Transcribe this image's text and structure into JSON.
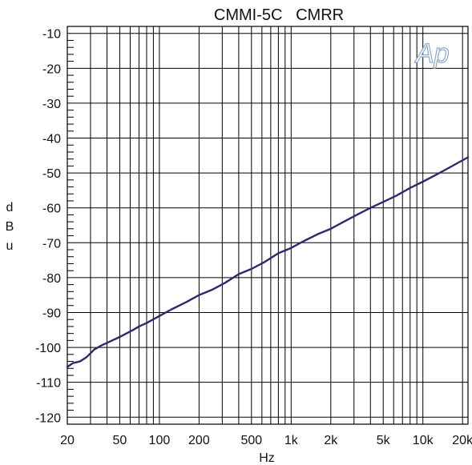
{
  "chart_data": {
    "type": "line",
    "title": "CMMI-5C   CMRR",
    "xlabel": "Hz",
    "ylabel": [
      "d",
      "B",
      "u"
    ],
    "x_scale": "log",
    "xlim": [
      20,
      22000
    ],
    "ylim": [
      -122,
      -8
    ],
    "x_ticks": [
      {
        "value": 20,
        "label": "20"
      },
      {
        "value": 50,
        "label": "50"
      },
      {
        "value": 100,
        "label": "100"
      },
      {
        "value": 200,
        "label": "200"
      },
      {
        "value": 500,
        "label": "500"
      },
      {
        "value": 1000,
        "label": "1k"
      },
      {
        "value": 2000,
        "label": "2k"
      },
      {
        "value": 5000,
        "label": "5k"
      },
      {
        "value": 10000,
        "label": "10k"
      },
      {
        "value": 20000,
        "label": "20k"
      }
    ],
    "y_ticks": [
      {
        "value": -10,
        "label": "-10"
      },
      {
        "value": -20,
        "label": "-20"
      },
      {
        "value": -30,
        "label": "-30"
      },
      {
        "value": -40,
        "label": "-40"
      },
      {
        "value": -50,
        "label": "-50"
      },
      {
        "value": -60,
        "label": "-60"
      },
      {
        "value": -70,
        "label": "-70"
      },
      {
        "value": -80,
        "label": "-80"
      },
      {
        "value": -90,
        "label": "-90"
      },
      {
        "value": -100,
        "label": "-100"
      },
      {
        "value": -110,
        "label": "-110"
      },
      {
        "value": -120,
        "label": "-120"
      }
    ],
    "grid": true,
    "series": [
      {
        "color": "#2b2a6b",
        "points": [
          {
            "x": 20,
            "y": -105.6
          },
          {
            "x": 22,
            "y": -104.5
          },
          {
            "x": 25,
            "y": -104.0
          },
          {
            "x": 28,
            "y": -102.8
          },
          {
            "x": 32,
            "y": -100.6
          },
          {
            "x": 36,
            "y": -99.5
          },
          {
            "x": 40,
            "y": -98.7
          },
          {
            "x": 50,
            "y": -97.0
          },
          {
            "x": 63,
            "y": -95.0
          },
          {
            "x": 70,
            "y": -94.0
          },
          {
            "x": 80,
            "y": -93.0
          },
          {
            "x": 100,
            "y": -91.0
          },
          {
            "x": 125,
            "y": -89.0
          },
          {
            "x": 160,
            "y": -87.0
          },
          {
            "x": 200,
            "y": -85.0
          },
          {
            "x": 250,
            "y": -83.5
          },
          {
            "x": 315,
            "y": -81.5
          },
          {
            "x": 400,
            "y": -79.0
          },
          {
            "x": 500,
            "y": -77.5
          },
          {
            "x": 630,
            "y": -75.5
          },
          {
            "x": 800,
            "y": -73.0
          },
          {
            "x": 1000,
            "y": -71.5
          },
          {
            "x": 1250,
            "y": -69.5
          },
          {
            "x": 1600,
            "y": -67.5
          },
          {
            "x": 2000,
            "y": -66.0
          },
          {
            "x": 2500,
            "y": -64.0
          },
          {
            "x": 3150,
            "y": -62.0
          },
          {
            "x": 4000,
            "y": -60.0
          },
          {
            "x": 5000,
            "y": -58.3
          },
          {
            "x": 6300,
            "y": -56.5
          },
          {
            "x": 8000,
            "y": -54.3
          },
          {
            "x": 10000,
            "y": -52.5
          },
          {
            "x": 12500,
            "y": -50.6
          },
          {
            "x": 16000,
            "y": -48.4
          },
          {
            "x": 22000,
            "y": -45.5
          }
        ]
      }
    ]
  },
  "logo": {
    "text": "Ap",
    "color": "#8fa6c6"
  }
}
